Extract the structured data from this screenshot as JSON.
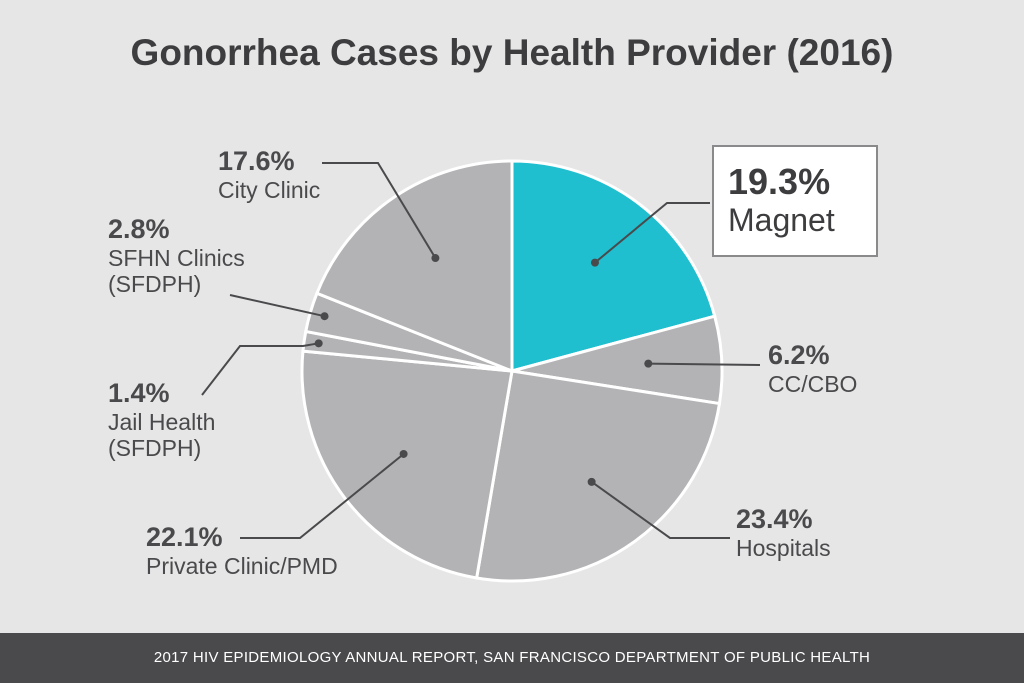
{
  "title": "Gonorrhea Cases by Health Provider (2016)",
  "footer": "2017 HIV EPIDEMIOLOGY ANNUAL REPORT, SAN FRANCISCO DEPARTMENT OF PUBLIC HEALTH",
  "colors": {
    "highlight": "#1fbfcf",
    "slice": "#b3b3b5",
    "background": "#e6e6e7",
    "footer": "#4a4a4c",
    "leader": "#4a4a4c"
  },
  "chart_data": {
    "type": "pie",
    "title": "Gonorrhea Cases by Health Provider (2016)",
    "unit": "%",
    "categories": [
      "Magnet",
      "CC/CBO",
      "Hospitals",
      "Private Clinic/PMD",
      "Jail Health\n(SFDPH)",
      "SFHN Clinics\n(SFDPH)",
      "City Clinic"
    ],
    "values": [
      19.3,
      6.2,
      23.4,
      22.1,
      1.4,
      2.8,
      17.6
    ],
    "labels": [
      "19.3%",
      "6.2%",
      "23.4%",
      "22.1%",
      "1.4%",
      "2.8%",
      "17.6%"
    ],
    "highlighted": "Magnet",
    "start_angle": "12 o'clock",
    "direction": "clockwise"
  }
}
